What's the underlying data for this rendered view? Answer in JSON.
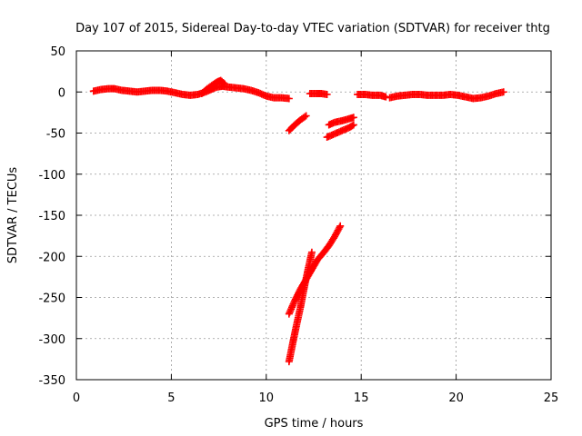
{
  "chart_data": {
    "type": "scatter",
    "title": "Day 107 of 2015, Sidereal Day-to-day VTEC variation (SDTVAR) for receiver thtg",
    "xlabel": "GPS time / hours",
    "ylabel": "SDTVAR / TECUs",
    "xlim": [
      0,
      25
    ],
    "ylim": [
      -350,
      50
    ],
    "x_ticks": [
      0,
      5,
      10,
      15,
      20,
      25
    ],
    "y_ticks": [
      50,
      0,
      -50,
      -100,
      -150,
      -200,
      -250,
      -300,
      -350
    ],
    "grid": true,
    "color": "#ff0000",
    "marker": "plus",
    "series": [
      {
        "segments": [
          {
            "x": [
              0.9,
              1.3,
              1.7,
              2.0,
              2.4,
              2.8,
              3.2,
              3.6,
              4.0,
              4.4,
              4.8,
              5.2,
              5.6,
              6.0,
              6.4,
              6.8,
              7.1,
              7.4,
              7.7,
              8.0,
              8.4,
              8.8,
              9.2,
              9.6,
              10.0,
              10.4,
              10.8,
              11.2
            ],
            "y": [
              1,
              3,
              4,
              4,
              2,
              1,
              0,
              1,
              2,
              2,
              1,
              -1,
              -3,
              -4,
              -3,
              0,
              3,
              6,
              7,
              6,
              5,
              4,
              2,
              -1,
              -5,
              -7,
              -7,
              -8
            ]
          },
          {
            "x": [
              6.6,
              6.9,
              7.2,
              7.4,
              7.6,
              7.8
            ],
            "y": [
              -2,
              4,
              9,
              12,
              14,
              10
            ]
          },
          {
            "x": [
              12.3,
              12.6,
              12.9,
              13.2
            ],
            "y": [
              -2,
              -2,
              -2,
              -3
            ]
          },
          {
            "x": [
              14.8,
              15.2,
              15.6,
              16.0,
              16.3
            ],
            "y": [
              -3,
              -3,
              -4,
              -4,
              -6
            ]
          },
          {
            "x": [
              16.5,
              16.9,
              17.3,
              17.7,
              18.1,
              18.5,
              18.9,
              19.3,
              19.7,
              20.1,
              20.5,
              20.9,
              21.3,
              21.7,
              22.1,
              22.5
            ],
            "y": [
              -7,
              -5,
              -4,
              -3,
              -3,
              -4,
              -4,
              -4,
              -3,
              -4,
              -6,
              -8,
              -7,
              -5,
              -2,
              0
            ]
          },
          {
            "x": [
              11.2,
              11.5,
              11.8,
              12.1
            ],
            "y": [
              -47,
              -40,
              -34,
              -29
            ]
          },
          {
            "x": [
              13.3,
              13.6,
              14.0,
              14.3,
              14.6
            ],
            "y": [
              -40,
              -37,
              -35,
              -33,
              -31
            ]
          },
          {
            "x": [
              13.2,
              13.6,
              14.0,
              14.4,
              14.6
            ],
            "y": [
              -55,
              -51,
              -47,
              -43,
              -40
            ]
          },
          {
            "x": [
              11.2,
              11.5,
              11.8,
              12.1,
              12.4,
              12.7,
              13.0,
              13.3,
              13.6,
              13.9
            ],
            "y": [
              -270,
              -254,
              -240,
              -228,
              -216,
              -204,
              -196,
              -187,
              -176,
              -163
            ]
          },
          {
            "x": [
              11.2,
              11.4,
              11.6,
              11.8,
              12.0,
              12.2,
              12.4
            ],
            "y": [
              -328,
              -305,
              -283,
              -262,
              -238,
              -216,
              -195
            ]
          }
        ]
      }
    ]
  }
}
